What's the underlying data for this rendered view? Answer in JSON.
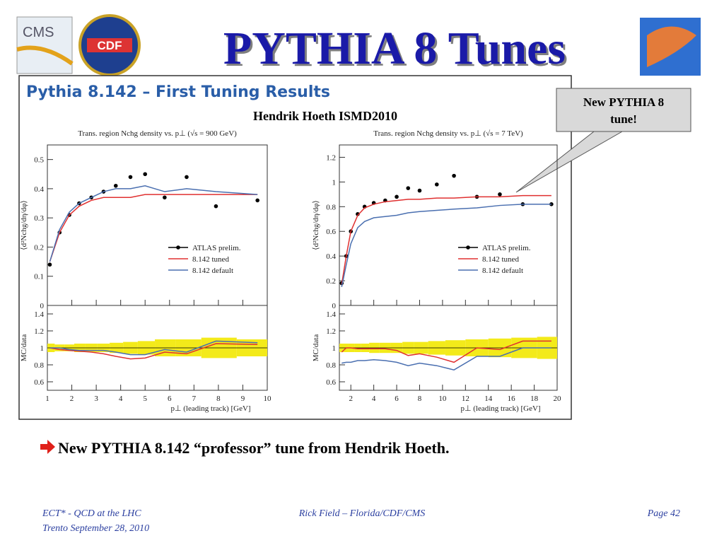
{
  "header": {
    "title": "PYTHIA 8 Tunes",
    "logo_left": "CMS",
    "logo_mid": "CDF"
  },
  "slide": {
    "heading": "Pythia 8.142 – First Tuning Results",
    "author": "Hendrik Hoeth ISMD2010",
    "callout": [
      "New PYTHIA 8",
      "tune!"
    ],
    "bullet": "New PYTHIA 8.142 “professor” tune from Hendrik Hoeth."
  },
  "footer": {
    "left": [
      "ECT* - QCD at the LHC",
      "Trento  September 28, 2010"
    ],
    "center": "Rick Field – Florida/CDF/CMS",
    "right": "Page 42"
  },
  "chart_data": [
    {
      "type": "line",
      "title": "Trans. region Nchg density vs. p⊥ (√s = 900 GeV)",
      "y_label": "⟨d²Nchg/dη/dφ⟩",
      "x_label": "p⊥ (leading track) [GeV]",
      "xlim": [
        1,
        10
      ],
      "xticks": [
        1,
        2,
        3,
        4,
        5,
        6,
        7,
        8,
        9,
        10
      ],
      "ylim": [
        0,
        0.55
      ],
      "yticks": [
        0,
        0.1,
        0.2,
        0.3,
        0.4,
        0.5
      ],
      "x": [
        1.1,
        1.5,
        1.9,
        2.3,
        2.8,
        3.3,
        3.8,
        4.4,
        5.0,
        5.8,
        6.7,
        7.9,
        9.6
      ],
      "series": [
        {
          "name": "ATLAS prelim.",
          "color": "#000000",
          "style": "points",
          "values": [
            0.14,
            0.25,
            0.31,
            0.35,
            0.37,
            0.39,
            0.41,
            0.44,
            0.45,
            0.37,
            0.44,
            0.34,
            0.36
          ]
        },
        {
          "name": "8.142 tuned",
          "color": "#e03030",
          "style": "line",
          "values": [
            0.15,
            0.25,
            0.31,
            0.34,
            0.36,
            0.37,
            0.37,
            0.37,
            0.38,
            0.38,
            0.38,
            0.38,
            0.38
          ]
        },
        {
          "name": "8.142 default",
          "color": "#4a6fb0",
          "style": "line",
          "values": [
            0.15,
            0.26,
            0.32,
            0.35,
            0.37,
            0.39,
            0.4,
            0.4,
            0.41,
            0.39,
            0.4,
            0.39,
            0.38
          ]
        }
      ],
      "ratio": {
        "y_label": "MC/data",
        "ylim": [
          0.5,
          1.5
        ],
        "yticks": [
          0.6,
          0.8,
          1,
          1.2,
          1.4
        ],
        "band": {
          "color": "#f3ea1a",
          "values": [
            0.05,
            0.04,
            0.04,
            0.05,
            0.05,
            0.05,
            0.06,
            0.07,
            0.08,
            0.1,
            0.1,
            0.12,
            0.1
          ]
        },
        "series": [
          {
            "color": "#e03030",
            "values": [
              1.0,
              0.98,
              0.97,
              0.96,
              0.95,
              0.93,
              0.9,
              0.87,
              0.88,
              0.95,
              0.93,
              1.05,
              1.04
            ]
          },
          {
            "color": "#4a6fb0",
            "values": [
              1.0,
              1.0,
              0.98,
              0.97,
              0.97,
              0.97,
              0.95,
              0.92,
              0.92,
              0.98,
              0.95,
              1.08,
              1.06
            ]
          }
        ]
      }
    },
    {
      "type": "line",
      "title": "Trans. region Nchg density vs. p⊥ (√s = 7 TeV)",
      "y_label": "⟨d²Nchg/dη/dφ⟩",
      "x_label": "p⊥ (leading track) [GeV]",
      "xlim": [
        1,
        20
      ],
      "xticks": [
        2,
        4,
        6,
        8,
        10,
        12,
        14,
        16,
        18,
        20
      ],
      "ylim": [
        0,
        1.3
      ],
      "yticks": [
        0,
        0.2,
        0.4,
        0.6,
        0.8,
        1,
        1.2
      ],
      "x": [
        1.2,
        1.6,
        2.0,
        2.6,
        3.2,
        4.0,
        5.0,
        6.0,
        7.0,
        8.0,
        9.5,
        11,
        13,
        15,
        17,
        19.5
      ],
      "series": [
        {
          "name": "ATLAS prelim.",
          "color": "#000000",
          "style": "points",
          "values": [
            0.18,
            0.4,
            0.6,
            0.74,
            0.8,
            0.83,
            0.85,
            0.88,
            0.95,
            0.93,
            0.98,
            1.05,
            0.88,
            0.9,
            0.82,
            0.82
          ]
        },
        {
          "name": "8.142 tuned",
          "color": "#e03030",
          "style": "line",
          "values": [
            0.17,
            0.4,
            0.6,
            0.73,
            0.79,
            0.82,
            0.84,
            0.85,
            0.86,
            0.86,
            0.87,
            0.87,
            0.88,
            0.88,
            0.89,
            0.89
          ]
        },
        {
          "name": "8.142 default",
          "color": "#4a6fb0",
          "style": "line",
          "values": [
            0.15,
            0.33,
            0.5,
            0.63,
            0.68,
            0.71,
            0.72,
            0.73,
            0.75,
            0.76,
            0.77,
            0.78,
            0.79,
            0.81,
            0.82,
            0.82
          ]
        }
      ],
      "ratio": {
        "y_label": "MC/data",
        "ylim": [
          0.5,
          1.5
        ],
        "yticks": [
          0.6,
          0.8,
          1,
          1.2,
          1.4
        ],
        "band": {
          "color": "#f3ea1a",
          "values": [
            0.05,
            0.05,
            0.05,
            0.05,
            0.05,
            0.06,
            0.06,
            0.06,
            0.07,
            0.07,
            0.08,
            0.09,
            0.1,
            0.11,
            0.12,
            0.13
          ]
        },
        "series": [
          {
            "color": "#e03030",
            "values": [
              0.95,
              1.0,
              1.0,
              0.99,
              0.99,
              0.99,
              0.99,
              0.97,
              0.91,
              0.93,
              0.89,
              0.83,
              1.0,
              0.98,
              1.08,
              1.08
            ]
          },
          {
            "color": "#4a6fb0",
            "values": [
              0.82,
              0.83,
              0.83,
              0.85,
              0.85,
              0.86,
              0.85,
              0.83,
              0.79,
              0.82,
              0.79,
              0.74,
              0.9,
              0.9,
              1.0,
              1.0
            ]
          }
        ]
      }
    }
  ]
}
